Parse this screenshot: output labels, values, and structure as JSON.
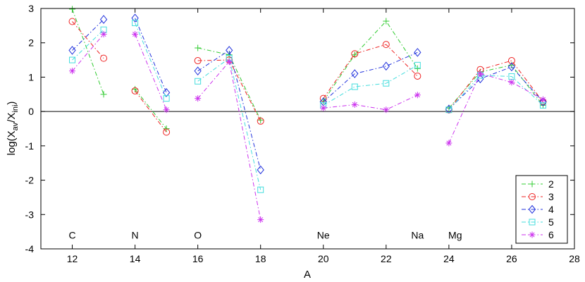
{
  "chart_data": {
    "type": "line",
    "xlabel": "A",
    "ylabel_main": "log(X",
    "ylabel_sub1": "av",
    "ylabel_mid": "/X",
    "ylabel_sub2": "ini",
    "ylabel_end": ")",
    "xlim": [
      11,
      28
    ],
    "ylim": [
      -4,
      3
    ],
    "xticks": [
      12,
      14,
      16,
      18,
      20,
      22,
      24,
      26,
      28
    ],
    "yticks": [
      -4,
      -3,
      -2,
      -1,
      0,
      1,
      2,
      3
    ],
    "zero_line": true,
    "legend_position": "bottom-right",
    "element_labels": [
      {
        "text": "C",
        "x": 12,
        "y": -3.6
      },
      {
        "text": "N",
        "x": 14,
        "y": -3.6
      },
      {
        "text": "O",
        "x": 16,
        "y": -3.6
      },
      {
        "text": "Ne",
        "x": 20,
        "y": -3.6
      },
      {
        "text": "Na",
        "x": 23,
        "y": -3.6
      },
      {
        "text": "Mg",
        "x": 24.2,
        "y": -3.6
      }
    ],
    "series": [
      {
        "name": "2",
        "color": "#33cc33",
        "marker": "plus",
        "groups": [
          [
            [
              12,
              2.98
            ],
            [
              13,
              0.5
            ]
          ],
          [
            [
              14,
              0.65
            ],
            [
              15,
              -0.5
            ]
          ],
          [
            [
              16,
              1.85
            ],
            [
              17,
              1.65
            ],
            [
              18,
              -0.25
            ]
          ],
          [
            [
              20,
              0.3
            ],
            [
              21,
              1.65
            ],
            [
              22,
              2.63
            ],
            [
              23,
              1.25
            ]
          ],
          [
            [
              24,
              0.1
            ],
            [
              25,
              1.15
            ],
            [
              26,
              1.35
            ],
            [
              27,
              0.18
            ]
          ]
        ]
      },
      {
        "name": "3",
        "color": "#ee2222",
        "marker": "circle",
        "groups": [
          [
            [
              12,
              2.62
            ],
            [
              13,
              1.55
            ]
          ],
          [
            [
              14,
              0.6
            ],
            [
              15,
              -0.6
            ]
          ],
          [
            [
              16,
              1.48
            ],
            [
              17,
              1.5
            ],
            [
              18,
              -0.28
            ]
          ],
          [
            [
              20,
              0.38
            ],
            [
              21,
              1.68
            ],
            [
              22,
              1.95
            ],
            [
              23,
              1.03
            ]
          ],
          [
            [
              24,
              0.05
            ],
            [
              25,
              1.22
            ],
            [
              26,
              1.48
            ],
            [
              27,
              0.28
            ]
          ]
        ]
      },
      {
        "name": "4",
        "color": "#2233dd",
        "marker": "diamond",
        "groups": [
          [
            [
              12,
              1.78
            ],
            [
              13,
              2.68
            ]
          ],
          [
            [
              14,
              2.72
            ],
            [
              15,
              0.55
            ]
          ],
          [
            [
              16,
              1.18
            ],
            [
              17,
              1.78
            ],
            [
              18,
              -1.7
            ]
          ],
          [
            [
              20,
              0.28
            ],
            [
              21,
              1.1
            ],
            [
              22,
              1.32
            ],
            [
              23,
              1.72
            ]
          ],
          [
            [
              24,
              0.07
            ],
            [
              25,
              0.95
            ],
            [
              26,
              1.3
            ],
            [
              27,
              0.28
            ]
          ]
        ]
      },
      {
        "name": "5",
        "color": "#44dddd",
        "marker": "square",
        "groups": [
          [
            [
              12,
              1.5
            ],
            [
              13,
              2.38
            ]
          ],
          [
            [
              14,
              2.58
            ],
            [
              15,
              0.38
            ]
          ],
          [
            [
              16,
              0.88
            ],
            [
              17,
              1.55
            ],
            [
              18,
              -2.28
            ]
          ],
          [
            [
              20,
              0.18
            ],
            [
              21,
              0.72
            ],
            [
              22,
              0.82
            ],
            [
              23,
              1.35
            ]
          ],
          [
            [
              24,
              0.05
            ],
            [
              25,
              1.05
            ],
            [
              26,
              1.02
            ],
            [
              27,
              0.18
            ]
          ]
        ]
      },
      {
        "name": "6",
        "color": "#cc33ee",
        "marker": "star",
        "groups": [
          [
            [
              12,
              1.18
            ],
            [
              13,
              2.25
            ]
          ],
          [
            [
              14,
              2.25
            ],
            [
              15,
              0.05
            ]
          ],
          [
            [
              16,
              0.38
            ],
            [
              17,
              1.45
            ],
            [
              18,
              -3.15
            ]
          ],
          [
            [
              20,
              0.1
            ],
            [
              21,
              0.2
            ],
            [
              22,
              0.05
            ],
            [
              23,
              0.48
            ]
          ],
          [
            [
              24,
              -0.92
            ],
            [
              25,
              1.1
            ],
            [
              26,
              0.85
            ],
            [
              27,
              0.35
            ]
          ]
        ]
      }
    ]
  }
}
